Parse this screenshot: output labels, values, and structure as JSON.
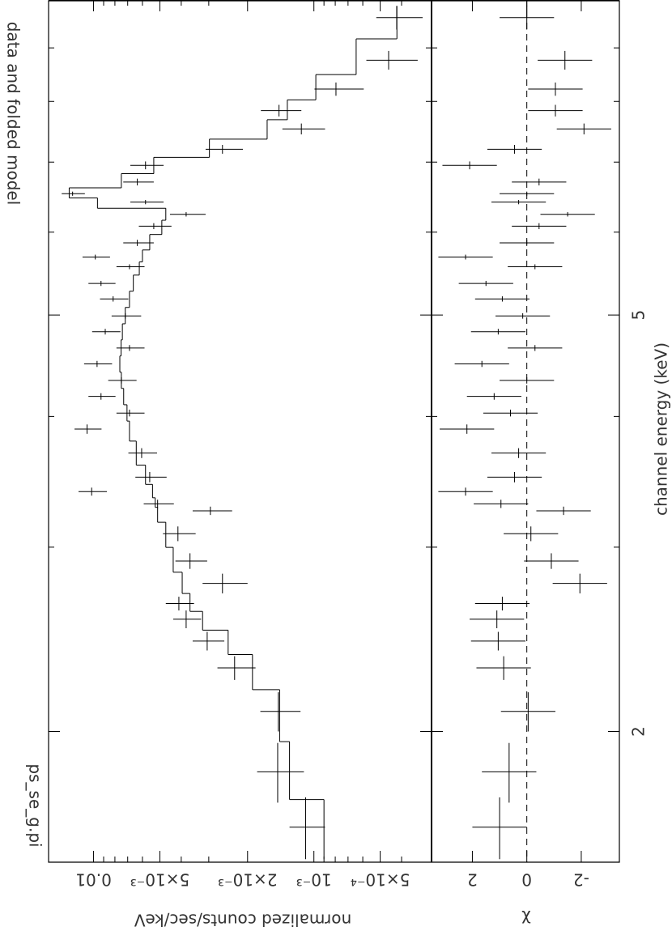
{
  "chart_data": [
    {
      "type": "spectrum",
      "title": "data and folded model",
      "annotation": "ps_se_g.pi",
      "y_label": "normalized counts/sec/keV",
      "log_x": true,
      "log_y": true,
      "ylim": [
        0.0003,
        0.016
      ],
      "yticks": [
        {
          "value": 0.0005,
          "label": "5×10⁻⁴"
        },
        {
          "value": 0.001,
          "label": "10⁻³"
        },
        {
          "value": 0.002,
          "label": "2×10⁻³"
        },
        {
          "value": 0.005,
          "label": "5×10⁻³"
        },
        0.01
      ],
      "yminor": [
        0.0004,
        0.0006,
        0.0007,
        0.0008,
        0.0009,
        0.003,
        0.004,
        0.006,
        0.007,
        0.008,
        0.009
      ],
      "color": "#000000",
      "x": [
        1.62,
        1.83,
        2.09,
        2.3,
        2.44,
        2.56,
        2.65,
        2.77,
        2.91,
        3.09,
        3.25,
        3.3,
        3.39,
        3.5,
        3.69,
        3.89,
        4.03,
        4.18,
        4.33,
        4.49,
        4.65,
        4.82,
        4.99,
        5.18,
        5.36,
        5.56,
        5.68,
        5.86,
        6.08,
        6.24,
        6.41,
        6.53,
        6.7,
        6.95,
        7.2,
        7.53,
        7.84,
        8.22,
        8.76,
        9.62
      ],
      "xerr": [
        0.11,
        0.12,
        0.09,
        0.06,
        0.05,
        0.05,
        0.04,
        0.06,
        0.05,
        0.05,
        0.03,
        0.03,
        0.03,
        0.04,
        0.04,
        0.04,
        0.03,
        0.03,
        0.03,
        0.03,
        0.03,
        0.03,
        0.03,
        0.03,
        0.03,
        0.03,
        0.03,
        0.04,
        0.04,
        0.03,
        0.03,
        0.03,
        0.05,
        0.06,
        0.07,
        0.09,
        0.1,
        0.12,
        0.18,
        0.25
      ],
      "values": [
        0.00109,
        0.00146,
        0.00145,
        0.00229,
        0.00305,
        0.0038,
        0.0041,
        0.0026,
        0.00365,
        0.00414,
        0.00295,
        0.00512,
        0.0102,
        0.00556,
        0.00605,
        0.0107,
        0.00687,
        0.00925,
        0.00748,
        0.00964,
        0.00687,
        0.00885,
        0.00718,
        0.00815,
        0.00925,
        0.00687,
        0.00982,
        0.00633,
        0.00533,
        0.0038,
        0.00581,
        0.01245,
        0.00633,
        0.00581,
        0.0026,
        0.00114,
        0.00144,
        0.000794,
        0.000458,
        0.000421
      ],
      "errors": [
        0.0002,
        0.00035,
        0.0003,
        0.00045,
        0.0005,
        0.00055,
        0.0006,
        0.0006,
        0.0006,
        0.0007,
        0.0006,
        0.0008,
        0.0015,
        0.0009,
        0.0009,
        0.0015,
        0.001,
        0.0013,
        0.0011,
        0.0014,
        0.001,
        0.0013,
        0.0011,
        0.0012,
        0.0013,
        0.001,
        0.0014,
        0.001,
        0.0009,
        0.0007,
        0.001,
        0.0015,
        0.001,
        0.001,
        0.0005,
        0.00025,
        0.0003,
        0.0002,
        0.00012,
        0.0001
      ],
      "model": [
        0.0009,
        0.00129,
        0.00143,
        0.0019,
        0.00245,
        0.0032,
        0.00365,
        0.00396,
        0.00435,
        0.0047,
        0.00512,
        0.00525,
        0.0054,
        0.00581,
        0.0064,
        0.00687,
        0.00705,
        0.0073,
        0.00748,
        0.0076,
        0.0075,
        0.0074,
        0.00718,
        0.00687,
        0.0066,
        0.0062,
        0.006,
        0.00556,
        0.0049,
        0.0047,
        0.0096,
        0.0129,
        0.00748,
        0.00533,
        0.00298,
        0.00163,
        0.00132,
        0.00098,
        0.000643,
        0.00042
      ]
    },
    {
      "type": "residuals",
      "y_label": "χ",
      "x_label": "channel energy (keV)",
      "xlim": [
        1.5,
        10
      ],
      "xticks": [
        2,
        5
      ],
      "xminor": [
        3,
        4,
        6,
        7,
        8,
        9
      ],
      "ylim": [
        -3.4,
        3.5
      ],
      "yticks": [
        -2,
        0,
        2
      ],
      "reference_line": 0,
      "error": 1,
      "values": [
        1.0,
        0.65,
        -0.05,
        0.85,
        1.05,
        1.1,
        0.9,
        -1.95,
        -0.9,
        -0.15,
        -1.35,
        0.95,
        2.25,
        0.45,
        0.3,
        2.2,
        0.6,
        1.2,
        0,
        1.65,
        -0.3,
        1.05,
        0.15,
        0.9,
        1.5,
        -0.3,
        2.25,
        0,
        -0.45,
        -1.5,
        0.3,
        0,
        -0.45,
        2.1,
        0.45,
        -2.1,
        -1.05,
        -1.05,
        -1.4,
        0
      ]
    }
  ]
}
